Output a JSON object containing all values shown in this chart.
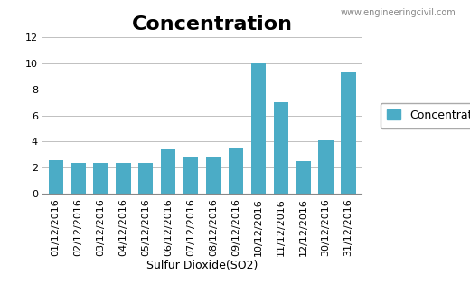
{
  "title": "Concentration",
  "watermark": "www.engineeringcivil.com",
  "xlabel": "Sulfur Dioxide(SO2)",
  "ylabel": "",
  "legend_label": "Concentration",
  "categories": [
    "01/12/2016",
    "02/12/2016",
    "03/12/2016",
    "04/12/2016",
    "05/12/2016",
    "06/12/2016",
    "07/12/2016",
    "08/12/2016",
    "09/12/2016",
    "10/12/2016",
    "11/12/2016",
    "12/12/2016",
    "30/12/2016",
    "31/12/2016"
  ],
  "values": [
    2.6,
    2.4,
    2.35,
    2.4,
    2.4,
    3.4,
    2.8,
    2.75,
    3.5,
    10.0,
    7.0,
    2.5,
    4.1,
    9.3
  ],
  "bar_color": "#4bacc6",
  "ylim": [
    0,
    12
  ],
  "yticks": [
    0,
    2,
    4,
    6,
    8,
    10,
    12
  ],
  "title_fontsize": 16,
  "xlabel_fontsize": 9,
  "tick_labelsize": 8,
  "legend_fontsize": 9,
  "watermark_fontsize": 7,
  "background_color": "#ffffff",
  "grid_color": "#c0c0c0",
  "bar_width": 0.65
}
